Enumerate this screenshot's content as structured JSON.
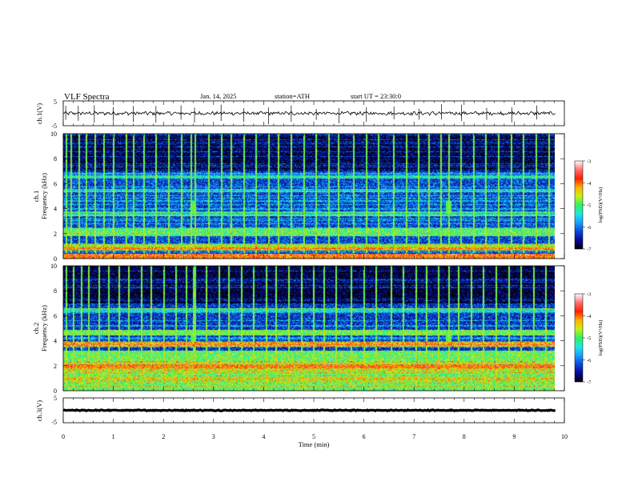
{
  "header": {
    "title": "VLF Spectra",
    "date": "Jan. 14, 2025",
    "station": "station=ATH",
    "start": "start UT =  23:30:0"
  },
  "colors": {
    "colormap": [
      "#000000",
      "#08089a",
      "#0a48d8",
      "#18a0ff",
      "#20e8e0",
      "#30f060",
      "#c8f018",
      "#ffb000",
      "#ff2000",
      "#ff7070",
      "#ffffff"
    ]
  },
  "chart_data": [
    {
      "type": "line",
      "panel": "ch1-waveform",
      "ylabel": "ch.1(V)",
      "yticks": [
        "5",
        "-5"
      ],
      "ylim": [
        -5,
        5
      ],
      "xlim": [
        0,
        10
      ],
      "x_end_data": 9.82,
      "baseline": 0,
      "noise_amplitude": 0.6
    },
    {
      "type": "heatmap",
      "panel": "ch1-spectrogram",
      "ylabel": "ch.1",
      "ylabel2": "Frequency (kHz)",
      "yticks": [
        "0",
        "2",
        "4",
        "6",
        "8",
        "10"
      ],
      "ylim": [
        0,
        10
      ],
      "xlim": [
        0,
        10
      ],
      "x_end_data": 9.82,
      "zlim": [
        -7,
        -3
      ],
      "background_level": -6.2,
      "bands": [
        {
          "f": [
            0.0,
            0.35
          ],
          "level": -4.0
        },
        {
          "f": [
            0.6,
            1.1
          ],
          "level": -4.6
        },
        {
          "f": [
            1.8,
            2.4
          ],
          "level": -5.0
        },
        {
          "f": [
            3.4,
            3.8
          ],
          "level": -5.5
        },
        {
          "f": [
            5.3,
            5.6
          ],
          "level": -5.5
        },
        {
          "f": [
            6.4,
            6.7
          ],
          "level": -5.3
        }
      ],
      "sferic_times": [
        0.05,
        0.15,
        0.3,
        0.45,
        0.62,
        0.8,
        1.0,
        1.25,
        1.4,
        1.6,
        1.85,
        2.1,
        2.35,
        2.55,
        2.62,
        2.9,
        3.15,
        3.35,
        3.6,
        3.85,
        4.1,
        4.3,
        4.55,
        4.8,
        5.05,
        5.3,
        5.5,
        5.8,
        6.05,
        6.3,
        6.6,
        6.85,
        7.1,
        7.3,
        7.55,
        7.7,
        7.95,
        8.2,
        8.45,
        8.7,
        8.95,
        9.2,
        9.45,
        9.7
      ],
      "colorbar": {
        "label": "log(PSD)(V²/Hz)",
        "ticks": [
          "-3",
          "-4",
          "-5",
          "-6",
          "-7"
        ]
      }
    },
    {
      "type": "heatmap",
      "panel": "ch2-spectrogram",
      "ylabel": "ch.2",
      "ylabel2": "Frequency (kHz)",
      "yticks": [
        "0",
        "2",
        "4",
        "6",
        "8",
        "10"
      ],
      "ylim": [
        0,
        10
      ],
      "xlim": [
        0,
        10
      ],
      "x_end_data": 9.82,
      "zlim": [
        -7,
        -3
      ],
      "background_level": -6.3,
      "bands": [
        {
          "f": [
            0.0,
            3.2
          ],
          "level": -4.9
        },
        {
          "f": [
            1.8,
            2.1
          ],
          "level": -4.0
        },
        {
          "f": [
            3.5,
            3.9
          ],
          "level": -4.3
        },
        {
          "f": [
            4.4,
            4.9
          ],
          "level": -4.9
        },
        {
          "f": [
            6.3,
            6.6
          ],
          "level": -5.4
        }
      ],
      "sferic_times": [
        0.05,
        0.2,
        0.35,
        0.5,
        0.7,
        0.9,
        1.1,
        1.3,
        1.55,
        1.75,
        2.0,
        2.25,
        2.45,
        2.6,
        2.62,
        2.85,
        3.1,
        3.3,
        3.55,
        3.8,
        4.05,
        4.25,
        4.5,
        4.75,
        5.0,
        5.2,
        5.45,
        5.75,
        6.0,
        6.25,
        6.55,
        6.8,
        7.05,
        7.25,
        7.5,
        7.7,
        7.9,
        8.15,
        8.4,
        8.65,
        8.9,
        9.15,
        9.4,
        9.65
      ],
      "colorbar": {
        "label": "log(PSD)(V²/Hz)",
        "ticks": [
          "-3",
          "-4",
          "-5",
          "-6",
          "-7"
        ]
      }
    },
    {
      "type": "line",
      "panel": "ch3-waveform",
      "ylabel": "ch.3(V)",
      "yticks": [
        "5",
        "-5"
      ],
      "ylim": [
        -5,
        5
      ],
      "xlim": [
        0,
        10
      ],
      "x_end_data": 9.82,
      "baseline": 0,
      "noise_amplitude": 0.15,
      "xlabel": "Time (min)",
      "xticks": [
        "0",
        "1",
        "2",
        "3",
        "4",
        "5",
        "6",
        "7",
        "8",
        "9",
        "10"
      ]
    }
  ]
}
